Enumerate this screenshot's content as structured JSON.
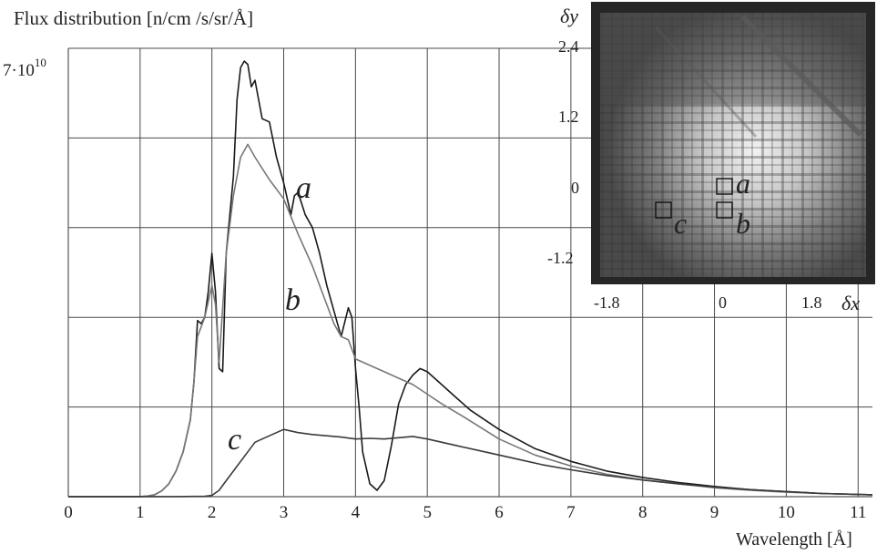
{
  "chart_data": {
    "type": "line",
    "ylabel": "Flux distribution [n/cm /s/sr/Å]",
    "xlabel": "Wavelength [Å]",
    "y_top_label": "7·10",
    "y_top_exponent": "10",
    "xlim": [
      0,
      11.2
    ],
    "ylim": [
      0,
      70000000000
    ],
    "grid": true,
    "x_ticks": [
      "0",
      "1",
      "2",
      "3",
      "4",
      "5",
      "6",
      "7",
      "8",
      "9",
      "10",
      "11"
    ],
    "series": [
      {
        "name": "a",
        "color": "#1a1a1a",
        "points": [
          [
            0,
            0.01
          ],
          [
            0.5,
            0.01
          ],
          [
            1.0,
            0.02
          ],
          [
            1.1,
            0.08
          ],
          [
            1.2,
            0.3
          ],
          [
            1.3,
            0.9
          ],
          [
            1.4,
            2.0
          ],
          [
            1.5,
            4.0
          ],
          [
            1.6,
            7.0
          ],
          [
            1.7,
            12.0
          ],
          [
            1.75,
            18.0
          ],
          [
            1.8,
            27.5
          ],
          [
            1.85,
            27.0
          ],
          [
            1.9,
            28.0
          ],
          [
            1.95,
            32.0
          ],
          [
            2.0,
            38.0
          ],
          [
            2.05,
            32.0
          ],
          [
            2.1,
            20.0
          ],
          [
            2.15,
            19.5
          ],
          [
            2.2,
            38.0
          ],
          [
            2.3,
            50.0
          ],
          [
            2.35,
            62.0
          ],
          [
            2.4,
            67.0
          ],
          [
            2.45,
            68.0
          ],
          [
            2.5,
            67.5
          ],
          [
            2.55,
            64.0
          ],
          [
            2.6,
            65.0
          ],
          [
            2.7,
            59.0
          ],
          [
            2.8,
            58.5
          ],
          [
            2.9,
            53.0
          ],
          [
            3.0,
            49.0
          ],
          [
            3.1,
            44.0
          ],
          [
            3.15,
            47.0
          ],
          [
            3.2,
            47.5
          ],
          [
            3.3,
            44.0
          ],
          [
            3.4,
            42.0
          ],
          [
            3.5,
            38.0
          ],
          [
            3.6,
            33.0
          ],
          [
            3.7,
            29.0
          ],
          [
            3.8,
            25.0
          ],
          [
            3.9,
            29.5
          ],
          [
            3.95,
            28.0
          ],
          [
            4.0,
            20.0
          ],
          [
            4.05,
            14.0
          ],
          [
            4.1,
            7.0
          ],
          [
            4.2,
            2.0
          ],
          [
            4.3,
            1.0
          ],
          [
            4.4,
            2.5
          ],
          [
            4.5,
            8.0
          ],
          [
            4.6,
            14.5
          ],
          [
            4.7,
            17.5
          ],
          [
            4.8,
            19.0
          ],
          [
            4.9,
            20.0
          ],
          [
            5.0,
            19.5
          ],
          [
            5.2,
            17.5
          ],
          [
            5.4,
            15.5
          ],
          [
            5.6,
            13.5
          ],
          [
            5.8,
            12.0
          ],
          [
            6.0,
            10.5
          ],
          [
            6.5,
            7.5
          ],
          [
            7.0,
            5.5
          ],
          [
            7.5,
            4.0
          ],
          [
            8.0,
            3.0
          ],
          [
            8.5,
            2.2
          ],
          [
            9.0,
            1.6
          ],
          [
            9.5,
            1.1
          ],
          [
            10.0,
            0.8
          ],
          [
            10.5,
            0.5
          ],
          [
            11.2,
            0.3
          ]
        ]
      },
      {
        "name": "b",
        "color": "#777777",
        "points": [
          [
            0,
            0.01
          ],
          [
            0.5,
            0.01
          ],
          [
            1.0,
            0.02
          ],
          [
            1.1,
            0.08
          ],
          [
            1.2,
            0.3
          ],
          [
            1.3,
            0.9
          ],
          [
            1.4,
            2.0
          ],
          [
            1.5,
            4.0
          ],
          [
            1.6,
            7.0
          ],
          [
            1.7,
            12.0
          ],
          [
            1.75,
            18.0
          ],
          [
            1.8,
            25.0
          ],
          [
            1.9,
            28.0
          ],
          [
            2.0,
            33.0
          ],
          [
            2.05,
            30.0
          ],
          [
            2.1,
            21.0
          ],
          [
            2.2,
            38.0
          ],
          [
            2.3,
            47.0
          ],
          [
            2.4,
            53.0
          ],
          [
            2.5,
            55.0
          ],
          [
            2.6,
            53.0
          ],
          [
            2.8,
            49.5
          ],
          [
            3.0,
            46.5
          ],
          [
            3.2,
            41.0
          ],
          [
            3.4,
            36.0
          ],
          [
            3.5,
            33.0
          ],
          [
            3.6,
            30.0
          ],
          [
            3.7,
            27.0
          ],
          [
            3.8,
            25.0
          ],
          [
            3.9,
            24.5
          ],
          [
            4.0,
            21.5
          ],
          [
            4.2,
            20.5
          ],
          [
            4.4,
            19.5
          ],
          [
            4.6,
            18.5
          ],
          [
            4.8,
            17.5
          ],
          [
            5.0,
            16.0
          ],
          [
            5.2,
            14.5
          ],
          [
            5.5,
            12.5
          ],
          [
            6.0,
            9.0
          ],
          [
            6.5,
            6.5
          ],
          [
            7.0,
            4.8
          ],
          [
            7.5,
            3.5
          ],
          [
            8.0,
            2.6
          ],
          [
            8.5,
            2.0
          ],
          [
            9.0,
            1.4
          ],
          [
            9.5,
            1.0
          ],
          [
            10.0,
            0.7
          ],
          [
            10.5,
            0.5
          ],
          [
            11.2,
            0.3
          ]
        ]
      },
      {
        "name": "c",
        "color": "#3a3a3a",
        "points": [
          [
            0,
            0.01
          ],
          [
            1.0,
            0.01
          ],
          [
            1.5,
            0.01
          ],
          [
            1.9,
            0.05
          ],
          [
            2.0,
            0.2
          ],
          [
            2.1,
            1.0
          ],
          [
            2.2,
            2.5
          ],
          [
            2.3,
            4.0
          ],
          [
            2.4,
            5.5
          ],
          [
            2.5,
            7.0
          ],
          [
            2.6,
            8.5
          ],
          [
            2.7,
            9.0
          ],
          [
            2.8,
            9.5
          ],
          [
            2.9,
            10.0
          ],
          [
            3.0,
            10.5
          ],
          [
            3.2,
            10.0
          ],
          [
            3.4,
            9.7
          ],
          [
            3.6,
            9.5
          ],
          [
            3.8,
            9.3
          ],
          [
            4.0,
            9.0
          ],
          [
            4.2,
            9.1
          ],
          [
            4.4,
            9.0
          ],
          [
            4.6,
            9.2
          ],
          [
            4.8,
            9.4
          ],
          [
            5.0,
            9.0
          ],
          [
            5.4,
            8.0
          ],
          [
            5.8,
            7.0
          ],
          [
            6.2,
            6.0
          ],
          [
            6.6,
            5.0
          ],
          [
            7.0,
            4.2
          ],
          [
            7.5,
            3.3
          ],
          [
            8.0,
            2.6
          ],
          [
            8.5,
            2.0
          ],
          [
            9.0,
            1.5
          ],
          [
            9.5,
            1.1
          ],
          [
            10.0,
            0.8
          ],
          [
            10.5,
            0.5
          ],
          [
            11.2,
            0.3
          ]
        ]
      }
    ],
    "inset": {
      "type": "heatmap",
      "xlabel": "δx",
      "ylabel": "δy",
      "x_ticks": [
        "-1.8",
        "0",
        "1.8"
      ],
      "y_ticks": [
        "2.4",
        "1.2",
        "0",
        "-1.2"
      ],
      "markers": [
        {
          "label": "a",
          "x": 0.0,
          "y": 0.0
        },
        {
          "label": "b",
          "x": 0.0,
          "y": -0.4
        },
        {
          "label": "c",
          "x": -1.0,
          "y": -0.4
        }
      ]
    }
  }
}
